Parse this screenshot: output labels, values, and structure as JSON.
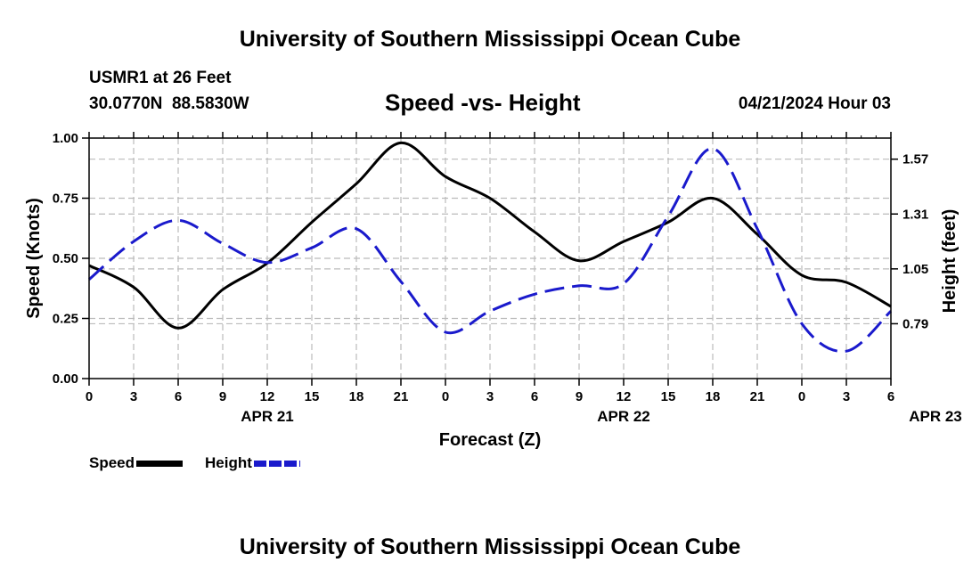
{
  "page": {
    "top_title": "University of Southern Mississippi Ocean Cube",
    "bottom_title": "University of Southern Mississippi Ocean Cube",
    "station_line": "USMR1 at 26 Feet",
    "coords_line": "30.0770N  88.5830W",
    "date_line": "04/21/2024 Hour 03"
  },
  "chart_data": {
    "type": "line",
    "title": "Speed -vs- Height",
    "xlabel": "Forecast (Z)",
    "ylabel": "Speed (Knots)",
    "y2label": "Height (feet)",
    "x_tick_labels": [
      "0",
      "3",
      "6",
      "9",
      "12",
      "15",
      "18",
      "21",
      "0",
      "3",
      "6",
      "9",
      "12",
      "15",
      "18",
      "21",
      "0",
      "3",
      "6"
    ],
    "date_labels": [
      {
        "text": "APR 21",
        "at_hour": 12
      },
      {
        "text": "APR 22",
        "at_hour": 36
      },
      {
        "text": "APR 23",
        "at_hour": 57
      }
    ],
    "xlim": [
      0,
      54
    ],
    "ylim": [
      0,
      1.0
    ],
    "y_ticks": [
      "0.00",
      "0.25",
      "0.50",
      "0.75",
      "1.00"
    ],
    "y_tick_values": [
      0,
      0.25,
      0.5,
      0.75,
      1.0
    ],
    "y2lim": [
      0.53,
      1.67
    ],
    "y2_ticks": [
      "0.79",
      "1.05",
      "1.31",
      "1.57"
    ],
    "y2_tick_values": [
      0.79,
      1.05,
      1.31,
      1.57
    ],
    "grid": true,
    "colors": {
      "speed": "#000000",
      "height": "#1a1acc",
      "grid": "#bbbbbb"
    },
    "series": [
      {
        "name": "Speed",
        "axis": "left",
        "x": [
          0,
          3,
          6,
          9,
          12,
          15,
          18,
          21,
          24,
          27,
          30,
          33,
          36,
          39,
          42,
          45,
          48,
          51,
          54
        ],
        "values": [
          0.47,
          0.38,
          0.21,
          0.37,
          0.48,
          0.65,
          0.81,
          0.98,
          0.84,
          0.75,
          0.61,
          0.49,
          0.57,
          0.65,
          0.75,
          0.6,
          0.43,
          0.4,
          0.3
        ]
      },
      {
        "name": "Height",
        "axis": "right",
        "x": [
          0,
          3,
          6,
          9,
          12,
          15,
          18,
          21,
          24,
          27,
          30,
          33,
          36,
          39,
          42,
          45,
          48,
          51,
          54
        ],
        "values": [
          1.0,
          1.18,
          1.28,
          1.17,
          1.08,
          1.15,
          1.24,
          0.99,
          0.75,
          0.85,
          0.93,
          0.97,
          0.98,
          1.3,
          1.62,
          1.24,
          0.79,
          0.66,
          0.85
        ]
      }
    ],
    "legend": [
      {
        "label": "Speed",
        "series": "Speed"
      },
      {
        "label": "Height",
        "series": "Height"
      }
    ]
  }
}
